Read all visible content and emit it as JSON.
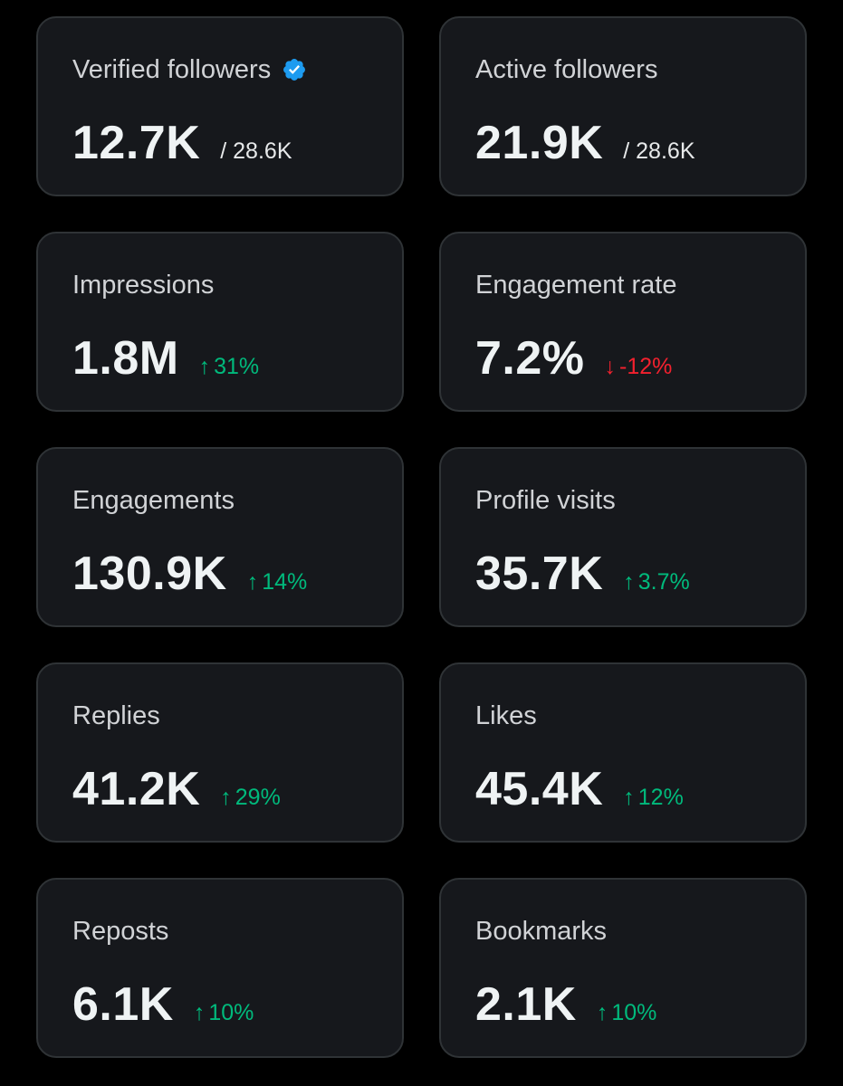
{
  "colors": {
    "background": "#000000",
    "card_background": "#16181c",
    "card_border": "#2f3336",
    "positive": "#00ba7c",
    "negative": "#f4212e",
    "verified_badge": "#1d9bf0"
  },
  "cards": [
    {
      "label": "Verified followers",
      "value": "12.7K",
      "total": "/ 28.6K",
      "badge_icon": "verified-badge-icon"
    },
    {
      "label": "Active followers",
      "value": "21.9K",
      "total": "/ 28.6K"
    },
    {
      "label": "Impressions",
      "value": "1.8M",
      "delta": "31%",
      "direction": "up",
      "arrow_icon": "arrow-up-icon"
    },
    {
      "label": "Engagement rate",
      "value": "7.2%",
      "delta": "-12%",
      "direction": "down",
      "arrow_icon": "arrow-down-icon"
    },
    {
      "label": "Engagements",
      "value": "130.9K",
      "delta": "14%",
      "direction": "up",
      "arrow_icon": "arrow-up-icon"
    },
    {
      "label": "Profile visits",
      "value": "35.7K",
      "delta": "3.7%",
      "direction": "up",
      "arrow_icon": "arrow-up-icon"
    },
    {
      "label": "Replies",
      "value": "41.2K",
      "delta": "29%",
      "direction": "up",
      "arrow_icon": "arrow-up-icon"
    },
    {
      "label": "Likes",
      "value": "45.4K",
      "delta": "12%",
      "direction": "up",
      "arrow_icon": "arrow-up-icon"
    },
    {
      "label": "Reposts",
      "value": "6.1K",
      "delta": "10%",
      "direction": "up",
      "arrow_icon": "arrow-up-icon"
    },
    {
      "label": "Bookmarks",
      "value": "2.1K",
      "delta": "10%",
      "direction": "up",
      "arrow_icon": "arrow-up-icon"
    }
  ]
}
